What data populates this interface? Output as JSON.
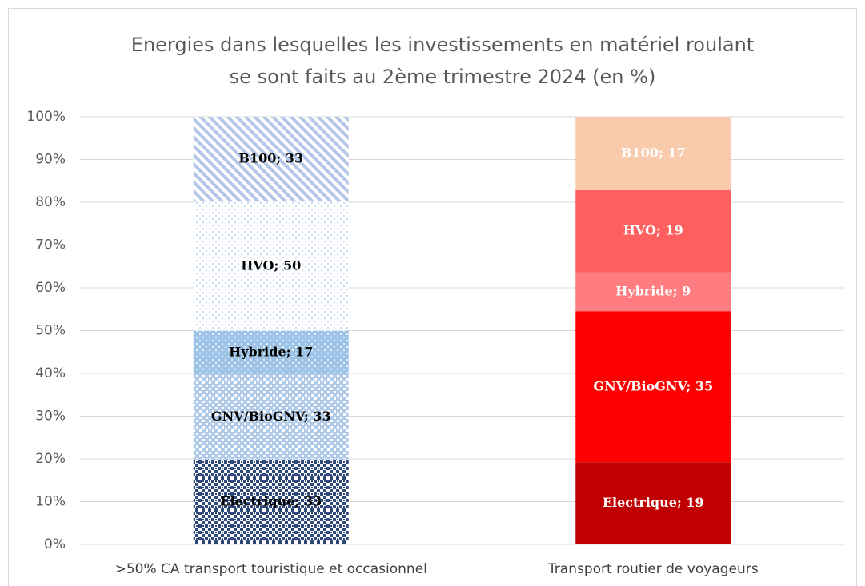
{
  "chart_data": {
    "type": "bar",
    "stacking": "percent",
    "title": [
      "Energies dans lesquelles les investissements en matériel roulant",
      "se sont faits au 2ème trimestre 2024 (en %)"
    ],
    "categories": [
      ">50% CA transport touristique et occasionnel",
      "Transport routier de voyageurs"
    ],
    "series": [
      {
        "name": "Electrique",
        "colors": [
          "#2f4a7a",
          "#c00000"
        ],
        "patterns": [
          "checks",
          null
        ],
        "values": [
          33,
          19
        ],
        "value_labels": [
          "Electrique; 33",
          "Electrique; 19"
        ]
      },
      {
        "name": "GNV/BioGNV",
        "colors": [
          "#6f9fd8",
          "#ff0000"
        ],
        "patterns": [
          "checks-light",
          null
        ],
        "values": [
          33,
          35
        ],
        "value_labels": [
          "GNV/BioGNV; 33",
          "GNV/BioGNV; 35"
        ]
      },
      {
        "name": "Hybride",
        "colors": [
          "#9dc3e6",
          "#ff7c80"
        ],
        "patterns": [
          "dots",
          null
        ],
        "values": [
          17,
          9
        ],
        "value_labels": [
          "Hybride; 17",
          "Hybride; 9"
        ]
      },
      {
        "name": "HVO",
        "colors": [
          "#9dc3e6",
          "#ff5f5f"
        ],
        "patterns": [
          "sparse-dots",
          null
        ],
        "values": [
          50,
          19
        ],
        "value_labels": [
          "HVO; 50",
          "HVO; 19"
        ]
      },
      {
        "name": "B100",
        "colors": [
          "#b4c7e7",
          "#f8cbad"
        ],
        "patterns": [
          "stripes",
          null
        ],
        "values": [
          33,
          17
        ],
        "value_labels": [
          "B100; 33",
          "B100; 17"
        ]
      }
    ],
    "label_colors": [
      "#000000",
      "#ffffff"
    ],
    "ylim": [
      0,
      100
    ],
    "yticks": [
      {
        "value": 0,
        "label": "0%"
      },
      {
        "value": 10,
        "label": "10%"
      },
      {
        "value": 20,
        "label": "20%"
      },
      {
        "value": 30,
        "label": "30%"
      },
      {
        "value": 40,
        "label": "40%"
      },
      {
        "value": 50,
        "label": "50%"
      },
      {
        "value": 60,
        "label": "60%"
      },
      {
        "value": 70,
        "label": "70%"
      },
      {
        "value": 80,
        "label": "80%"
      },
      {
        "value": 90,
        "label": "90%"
      },
      {
        "value": 100,
        "label": "100%"
      }
    ],
    "grid": true
  }
}
